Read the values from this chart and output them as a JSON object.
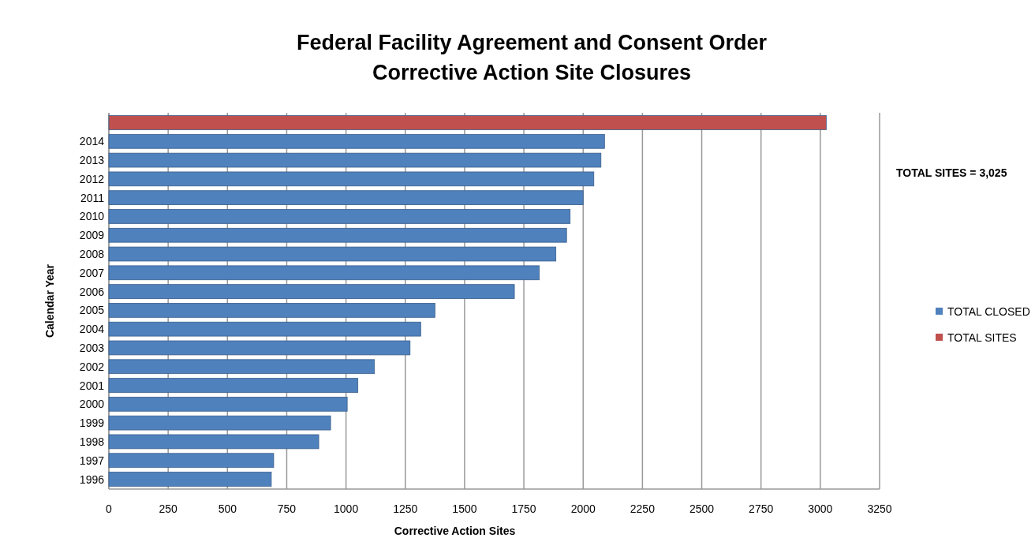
{
  "chart_data": {
    "type": "bar",
    "orientation": "horizontal",
    "title": "Federal Facility Agreement and Consent Order\nCorrective Action Site Closures",
    "xlabel": "Corrective Action Sites",
    "ylabel": "Calendar Year",
    "categories": [
      null,
      "2014",
      "2013",
      "2012",
      "2011",
      "2010",
      "2009",
      "2008",
      "2007",
      "2006",
      "2005",
      "2004",
      "2003",
      "2002",
      "2001",
      "2000",
      "1999",
      "1998",
      "1997",
      "1996"
    ],
    "series": [
      {
        "name": "TOTAL CLOSED",
        "color": "#4f81bd",
        "values": [
          null,
          2090,
          2075,
          2045,
          2000,
          1945,
          1930,
          1885,
          1815,
          1710,
          1375,
          1315,
          1270,
          1120,
          1050,
          1005,
          935,
          885,
          695,
          685
        ]
      },
      {
        "name": "TOTAL SITES",
        "color": "#c0504d",
        "values": [
          3025,
          null,
          null,
          null,
          null,
          null,
          null,
          null,
          null,
          null,
          null,
          null,
          null,
          null,
          null,
          null,
          null,
          null,
          null,
          null
        ]
      }
    ],
    "xlim": [
      0,
      3250
    ],
    "xticks": [
      0,
      250,
      500,
      750,
      1000,
      1250,
      1500,
      1750,
      2000,
      2250,
      2500,
      2750,
      3000,
      3250
    ],
    "grid": "x",
    "legend": "right",
    "annotations": [
      "TOTAL SITES = 3,025"
    ]
  }
}
